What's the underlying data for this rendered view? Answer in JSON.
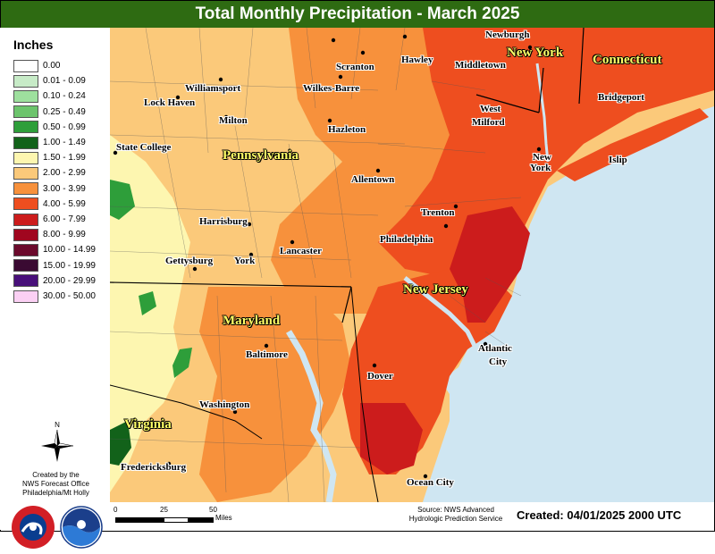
{
  "title": "Total Monthly Precipitation - March 2025",
  "legend": {
    "title": "Inches",
    "items": [
      {
        "label": "0.00",
        "color": "#ffffff"
      },
      {
        "label": "0.01 - 0.09",
        "color": "#c7ebc7"
      },
      {
        "label": "0.10 - 0.24",
        "color": "#9ee09e"
      },
      {
        "label": "0.25 - 0.49",
        "color": "#6cc46c"
      },
      {
        "label": "0.50 - 0.99",
        "color": "#2e9e3a"
      },
      {
        "label": "1.00 - 1.49",
        "color": "#12621a"
      },
      {
        "label": "1.50 - 1.99",
        "color": "#fdf6b0"
      },
      {
        "label": "2.00 - 2.99",
        "color": "#fbc97a"
      },
      {
        "label": "3.00 - 3.99",
        "color": "#f7913c"
      },
      {
        "label": "4.00 - 5.99",
        "color": "#ee4e1f"
      },
      {
        "label": "6.00 - 7.99",
        "color": "#cc1c1c"
      },
      {
        "label": "8.00 - 9.99",
        "color": "#a0061f"
      },
      {
        "label": "10.00 - 14.99",
        "color": "#6b0a2c"
      },
      {
        "label": "15.00 - 19.99",
        "color": "#3a0a32"
      },
      {
        "label": "20.00 - 29.99",
        "color": "#48107a"
      },
      {
        "label": "30.00 - 50.00",
        "color": "#fbd0f4"
      }
    ]
  },
  "compass_label": "N",
  "credit": [
    "Created by the",
    "NWS Forecast Office",
    "Philadelphia/Mt Holly"
  ],
  "logos": {
    "nws": "National Weather Service logo",
    "noaa": "NOAA"
  },
  "scale": {
    "ticks": [
      "0",
      "25",
      "50"
    ],
    "unit": "Miles"
  },
  "source": [
    "Source: NWS Advanced",
    "Hydrologic Prediction Service"
  ],
  "created": "Created: 04/01/2025 2000 UTC",
  "states": [
    "New York",
    "Connecticut",
    "Pennsylvania",
    "New Jersey",
    "Maryland",
    "Virginia"
  ],
  "cities": [
    "Newburgh",
    "Hawley",
    "Scranton",
    "Middletown",
    "Williamsport",
    "Lock Haven",
    "Wilkes-Barre",
    "West",
    "Milford",
    "Bridgeport",
    "Milton",
    "Hazleton",
    "State College",
    "New",
    "York",
    "Islip",
    "Allentown",
    "Trenton",
    "Harrisburg",
    "Philadelphia",
    "Lancaster",
    "Gettysburg",
    "York",
    "Baltimore",
    "Atlantic",
    "City",
    "Dover",
    "Washington",
    "Fredericksburg",
    "Ocean City"
  ]
}
